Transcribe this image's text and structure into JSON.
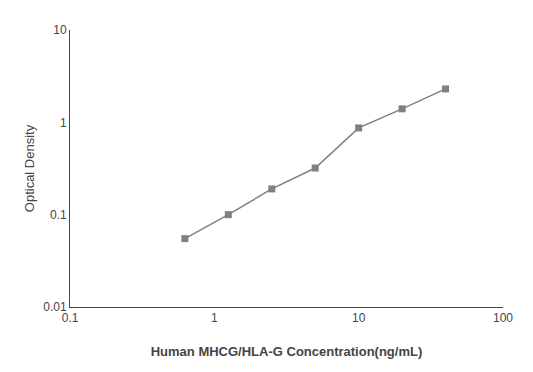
{
  "chart_data": {
    "type": "line",
    "xlabel": "Human MHCG/HLA-G Concentration(ng/mL)",
    "ylabel": "Optical Density",
    "x": [
      0.625,
      1.25,
      2.5,
      5,
      10,
      20,
      40
    ],
    "values": [
      0.055,
      0.1,
      0.19,
      0.32,
      0.87,
      1.4,
      2.3
    ],
    "xlim": [
      0.1,
      100
    ],
    "ylim": [
      0.01,
      10
    ],
    "xticks": [
      0.1,
      1,
      10,
      100
    ],
    "yticks": [
      0.01,
      0.1,
      1,
      10
    ],
    "log": true,
    "grid": false,
    "color": "#808080",
    "marker": "square",
    "line_style": "solid"
  }
}
